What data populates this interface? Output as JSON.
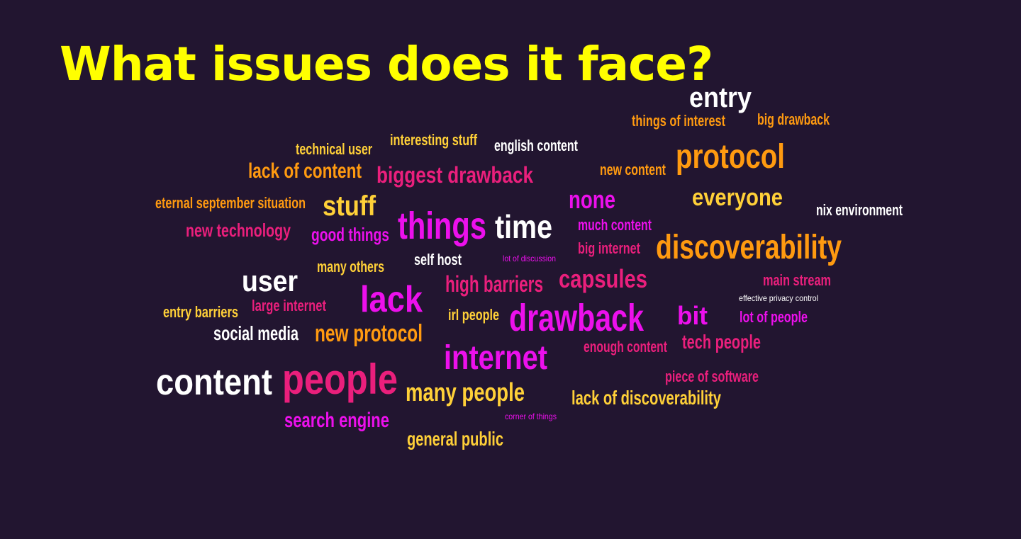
{
  "title": "What issues does it face?",
  "colors": {
    "background": "#221530",
    "title": "#ffff00",
    "white": "#ffffff",
    "yellow": "#ffd038",
    "orange": "#ff9a10",
    "pink": "#ea1f7c",
    "magenta": "#ec10ec"
  },
  "words": [
    {
      "text": "entry",
      "color": "white"
    },
    {
      "text": "things of interest",
      "color": "orange"
    },
    {
      "text": "big drawback",
      "color": "orange"
    },
    {
      "text": "technical user",
      "color": "yellow"
    },
    {
      "text": "interesting stuff",
      "color": "yellow"
    },
    {
      "text": "english content",
      "color": "white"
    },
    {
      "text": "protocol",
      "color": "orange"
    },
    {
      "text": "lack of content",
      "color": "orange"
    },
    {
      "text": "biggest drawback",
      "color": "pink"
    },
    {
      "text": "new content",
      "color": "orange"
    },
    {
      "text": "eternal september situation",
      "color": "orange"
    },
    {
      "text": "stuff",
      "color": "yellow"
    },
    {
      "text": "none",
      "color": "magenta"
    },
    {
      "text": "everyone",
      "color": "yellow"
    },
    {
      "text": "nix environment",
      "color": "white"
    },
    {
      "text": "new technology",
      "color": "pink"
    },
    {
      "text": "good things",
      "color": "magenta"
    },
    {
      "text": "things",
      "color": "magenta"
    },
    {
      "text": "time",
      "color": "white"
    },
    {
      "text": "much content",
      "color": "magenta"
    },
    {
      "text": "discoverability",
      "color": "orange"
    },
    {
      "text": "big internet",
      "color": "pink"
    },
    {
      "text": "self host",
      "color": "white"
    },
    {
      "text": "lot of discussion",
      "color": "magenta"
    },
    {
      "text": "many others",
      "color": "yellow"
    },
    {
      "text": "user",
      "color": "white"
    },
    {
      "text": "high barriers",
      "color": "pink"
    },
    {
      "text": "capsules",
      "color": "pink"
    },
    {
      "text": "main stream",
      "color": "pink"
    },
    {
      "text": "effective privacy control",
      "color": "white"
    },
    {
      "text": "lack",
      "color": "magenta"
    },
    {
      "text": "entry barriers",
      "color": "yellow"
    },
    {
      "text": "large internet",
      "color": "pink"
    },
    {
      "text": "irl people",
      "color": "yellow"
    },
    {
      "text": "drawback",
      "color": "magenta"
    },
    {
      "text": "bit",
      "color": "magenta"
    },
    {
      "text": "lot of people",
      "color": "magenta"
    },
    {
      "text": "social media",
      "color": "white"
    },
    {
      "text": "new protocol",
      "color": "orange"
    },
    {
      "text": "enough content",
      "color": "pink"
    },
    {
      "text": "tech people",
      "color": "pink"
    },
    {
      "text": "internet",
      "color": "magenta"
    },
    {
      "text": "content",
      "color": "white"
    },
    {
      "text": "people",
      "color": "pink"
    },
    {
      "text": "piece of software",
      "color": "pink"
    },
    {
      "text": "many people",
      "color": "yellow"
    },
    {
      "text": "lack of discoverability",
      "color": "yellow"
    },
    {
      "text": "search engine",
      "color": "magenta"
    },
    {
      "text": "corner of things",
      "color": "magenta"
    },
    {
      "text": "general public",
      "color": "yellow"
    }
  ]
}
